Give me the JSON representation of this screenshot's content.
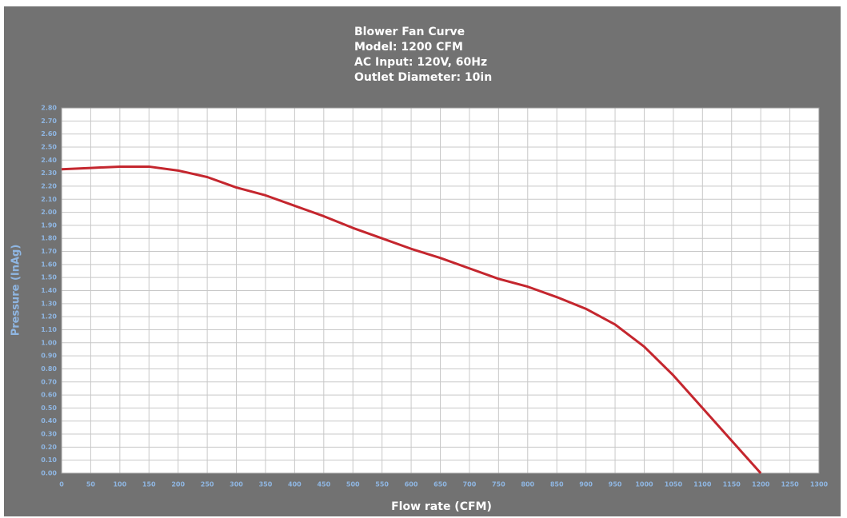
{
  "chart_data": {
    "type": "line",
    "title": [
      "Blower Fan Curve",
      "Model: 1200 CFM",
      "AC Input: 120V, 60Hz",
      "Outlet Diameter: 10in"
    ],
    "x_label": "Flow rate (CFM)",
    "y_label": "Pressure (InAg)",
    "grid": true,
    "x": [
      0,
      50,
      100,
      150,
      200,
      250,
      300,
      350,
      400,
      450,
      500,
      550,
      600,
      650,
      700,
      750,
      800,
      850,
      900,
      950,
      1000,
      1050,
      1100,
      1150,
      1200
    ],
    "series": [
      {
        "color": "#c4262e",
        "values": [
          2.33,
          2.34,
          2.35,
          2.35,
          2.32,
          2.27,
          2.19,
          2.13,
          2.05,
          1.97,
          1.88,
          1.8,
          1.72,
          1.65,
          1.57,
          1.49,
          1.43,
          1.35,
          1.26,
          1.14,
          0.97,
          0.75,
          0.5,
          0.25,
          0
        ]
      }
    ],
    "xlim": [
      0,
      1300
    ],
    "xticks": [
      0,
      50,
      100,
      150,
      200,
      250,
      300,
      350,
      400,
      450,
      500,
      550,
      600,
      650,
      700,
      750,
      800,
      850,
      900,
      950,
      1000,
      1050,
      1100,
      1150,
      1200,
      1250,
      1300
    ],
    "ylim": [
      0,
      2.8
    ],
    "yticks": [
      {
        "value": 0,
        "label": "0.00"
      },
      {
        "value": 0.1,
        "label": "0.10"
      },
      {
        "value": 0.2,
        "label": "0.20"
      },
      {
        "value": 0.3,
        "label": "0.30"
      },
      {
        "value": 0.4,
        "label": "0.40"
      },
      {
        "value": 0.5,
        "label": "0.50"
      },
      {
        "value": 0.6,
        "label": "0.60"
      },
      {
        "value": 0.7,
        "label": "0.70"
      },
      {
        "value": 0.8,
        "label": "0.80"
      },
      {
        "value": 0.9,
        "label": "0.90"
      },
      {
        "value": 1,
        "label": "1.00"
      },
      {
        "value": 1.1,
        "label": "1.10"
      },
      {
        "value": 1.2,
        "label": "1.20"
      },
      {
        "value": 1.3,
        "label": "1.30"
      },
      {
        "value": 1.4,
        "label": "1.40"
      },
      {
        "value": 1.5,
        "label": "1.50"
      },
      {
        "value": 1.6,
        "label": "1.60"
      },
      {
        "value": 1.7,
        "label": "1.70"
      },
      {
        "value": 1.8,
        "label": "1.80"
      },
      {
        "value": 1.9,
        "label": "1.90"
      },
      {
        "value": 2,
        "label": "2.00"
      },
      {
        "value": 2.1,
        "label": "2.10"
      },
      {
        "value": 2.2,
        "label": "2.20"
      },
      {
        "value": 2.3,
        "label": "2.30"
      },
      {
        "value": 2.4,
        "label": "2.40"
      },
      {
        "value": 2.5,
        "label": "2.50"
      },
      {
        "value": 2.6,
        "label": "2.60"
      },
      {
        "value": 2.7,
        "label": "2.70"
      },
      {
        "value": 2.8,
        "label": "2.80"
      }
    ]
  }
}
